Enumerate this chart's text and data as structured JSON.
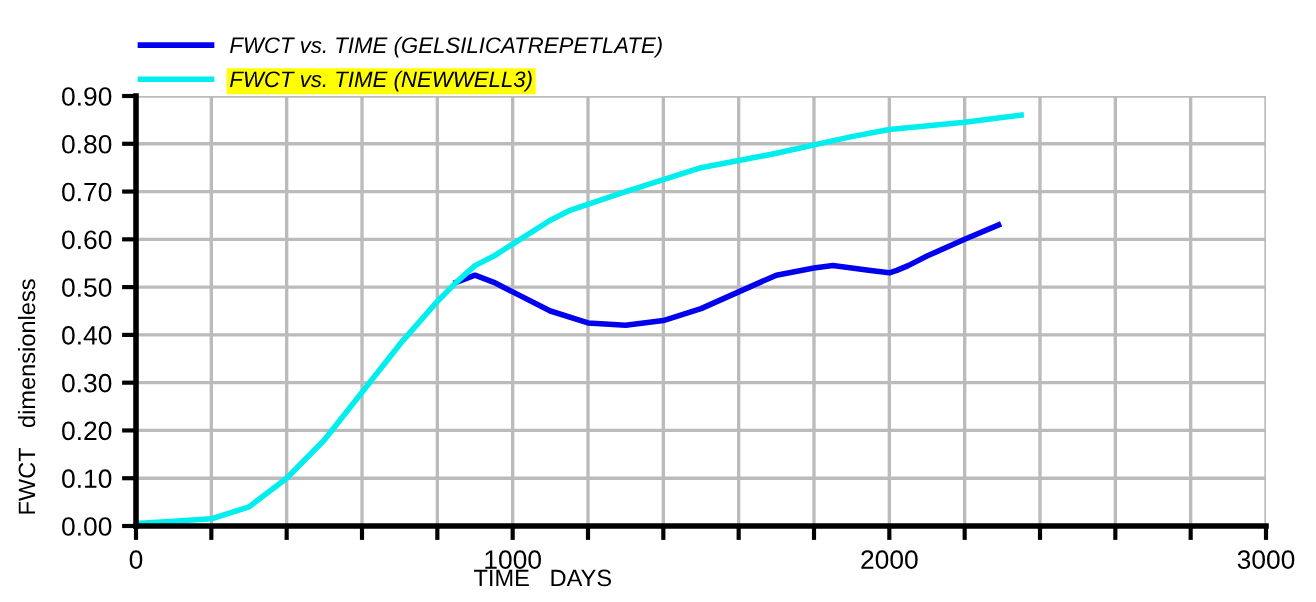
{
  "chart_data": {
    "type": "line",
    "xlabel": "TIME   DAYS",
    "ylabel": "FWCT   dimensionless",
    "xlim": [
      0,
      3000
    ],
    "ylim": [
      0,
      0.9
    ],
    "xticks": [
      0,
      {
        "value": 200,
        "label": null
      },
      {
        "value": 400,
        "label": null
      },
      {
        "value": 600,
        "label": null
      },
      {
        "value": 800,
        "label": null
      },
      1000,
      {
        "value": 1200,
        "label": null
      },
      {
        "value": 1400,
        "label": null
      },
      {
        "value": 1600,
        "label": null
      },
      {
        "value": 1800,
        "label": null
      },
      2000,
      {
        "value": 2200,
        "label": null
      },
      {
        "value": 2400,
        "label": null
      },
      {
        "value": 2600,
        "label": null
      },
      {
        "value": 2800,
        "label": null
      },
      3000
    ],
    "yticks": [
      {
        "value": 0,
        "label": "0.00"
      },
      {
        "value": 0.1,
        "label": "0.10"
      },
      {
        "value": 0.2,
        "label": "0.20"
      },
      {
        "value": 0.3,
        "label": "0.30"
      },
      {
        "value": 0.4,
        "label": "0.40"
      },
      {
        "value": 0.5,
        "label": "0.50"
      },
      {
        "value": 0.6,
        "label": "0.60"
      },
      {
        "value": 0.7,
        "label": "0.70"
      },
      {
        "value": 0.8,
        "label": "0.80"
      },
      {
        "value": 0.9,
        "label": "0.90"
      }
    ],
    "grid": true,
    "legend": "top left",
    "marker": "none",
    "line_style": "solid",
    "series": [
      {
        "name": "FWCT vs. TIME (GELSILICATREPETLATE)",
        "color": "#0000ee",
        "x": [
          850,
          900,
          950,
          1000,
          1100,
          1200,
          1300,
          1400,
          1500,
          1600,
          1700,
          1800,
          1850,
          1900,
          1950,
          2000,
          2020,
          2050,
          2100,
          2200,
          2290
        ],
        "values": [
          0.51,
          0.525,
          0.51,
          0.49,
          0.45,
          0.425,
          0.42,
          0.43,
          0.455,
          0.49,
          0.525,
          0.54,
          0.545,
          0.54,
          0.535,
          0.53,
          0.535,
          0.545,
          0.565,
          0.6,
          0.63
        ]
      },
      {
        "name": "FWCT vs. TIME (NEWWELL3)",
        "color": "#00eeee",
        "x": [
          0,
          100,
          200,
          300,
          400,
          500,
          600,
          700,
          800,
          850,
          900,
          950,
          1000,
          1100,
          1150,
          1300,
          1500,
          1700,
          1900,
          2000,
          2200,
          2350
        ],
        "values": [
          0.005,
          0.01,
          0.015,
          0.04,
          0.1,
          0.18,
          0.28,
          0.38,
          0.47,
          0.51,
          0.545,
          0.565,
          0.59,
          0.64,
          0.66,
          0.7,
          0.75,
          0.78,
          0.815,
          0.83,
          0.845,
          0.86
        ]
      }
    ]
  }
}
